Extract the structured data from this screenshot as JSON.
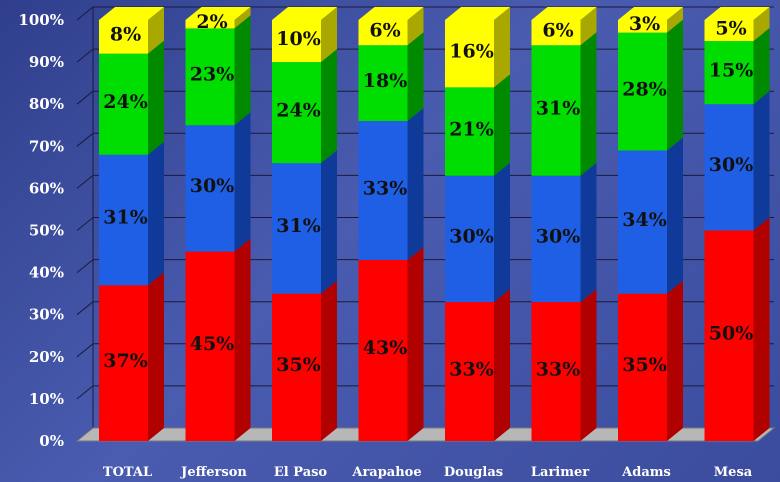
{
  "chart_data": {
    "type": "bar",
    "stacked": true,
    "percent": true,
    "categories": [
      "TOTAL",
      "Jefferson",
      "El Paso",
      "Arapahoe",
      "Douglas",
      "Larimer",
      "Adams",
      "Mesa"
    ],
    "series": [
      {
        "color": "#ff0000",
        "side_color": "#b00000",
        "values": [
          37,
          45,
          35,
          43,
          33,
          33,
          35,
          50
        ],
        "labels": [
          "37%",
          "45%",
          "35%",
          "43%",
          "33%",
          "33%",
          "35%",
          "50%"
        ]
      },
      {
        "color": "#1f5fe6",
        "side_color": "#103a9a",
        "values": [
          31,
          30,
          31,
          33,
          30,
          30,
          34,
          30
        ],
        "labels": [
          "31%",
          "30%",
          "31%",
          "33%",
          "30%",
          "30%",
          "34%",
          "30%"
        ]
      },
      {
        "color": "#00dd00",
        "side_color": "#008a00",
        "values": [
          24,
          23,
          24,
          18,
          21,
          31,
          28,
          15
        ],
        "labels": [
          "24%",
          "23%",
          "24%",
          "18%",
          "21%",
          "31%",
          "28%",
          "15%"
        ]
      },
      {
        "color": "#ffff00",
        "side_color": "#a8a800",
        "values": [
          8,
          2,
          10,
          6,
          16,
          6,
          3,
          5
        ],
        "labels": [
          "8%",
          "2%",
          "10%",
          "6%",
          "16%",
          "6%",
          "3%",
          "5%"
        ]
      }
    ],
    "yticks": [
      "0%",
      "10%",
      "20%",
      "30%",
      "40%",
      "50%",
      "60%",
      "70%",
      "80%",
      "90%",
      "100%"
    ],
    "ylim": [
      0,
      100
    ],
    "grid": true,
    "legend": "none"
  }
}
